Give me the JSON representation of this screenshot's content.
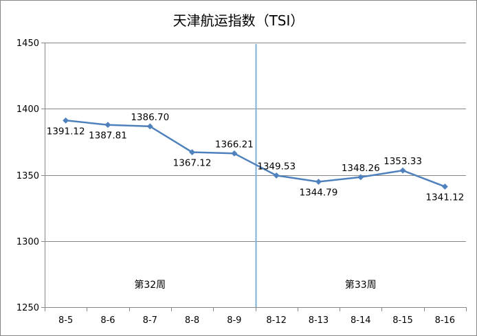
{
  "chart_data": {
    "type": "line",
    "title": "天津航运指数（TSI）",
    "xlabel": "",
    "ylabel": "",
    "categories": [
      "8-5",
      "8-6",
      "8-7",
      "8-8",
      "8-9",
      "8-12",
      "8-13",
      "8-14",
      "8-15",
      "8-16"
    ],
    "series": [
      {
        "values": [
          1391.12,
          1387.81,
          1386.7,
          1367.12,
          1366.21,
          1349.53,
          1344.79,
          1348.26,
          1353.33,
          1341.12
        ],
        "value_labels": [
          "1391.12",
          "1387.81",
          "1386.70",
          "1367.12",
          "1366.21",
          "1349.53",
          "1344.79",
          "1348.26",
          "1353.33",
          "1341.12"
        ],
        "color": "#4F81BD",
        "marker": "diamond"
      }
    ],
    "ylim": [
      1250,
      1450
    ],
    "yticks": [
      1250,
      1300,
      1350,
      1400,
      1450
    ],
    "ytick_labels": [
      "1250",
      "1300",
      "1350",
      "1400",
      "1450"
    ],
    "grid": true,
    "annotations": [
      {
        "text": "第32周",
        "spans_categories": [
          "8-5",
          "8-9"
        ]
      },
      {
        "text": "第33周",
        "spans_categories": [
          "8-12",
          "8-16"
        ]
      }
    ],
    "divider_between": [
      "8-9",
      "8-12"
    ],
    "divider_color": "#7FB2D9"
  }
}
